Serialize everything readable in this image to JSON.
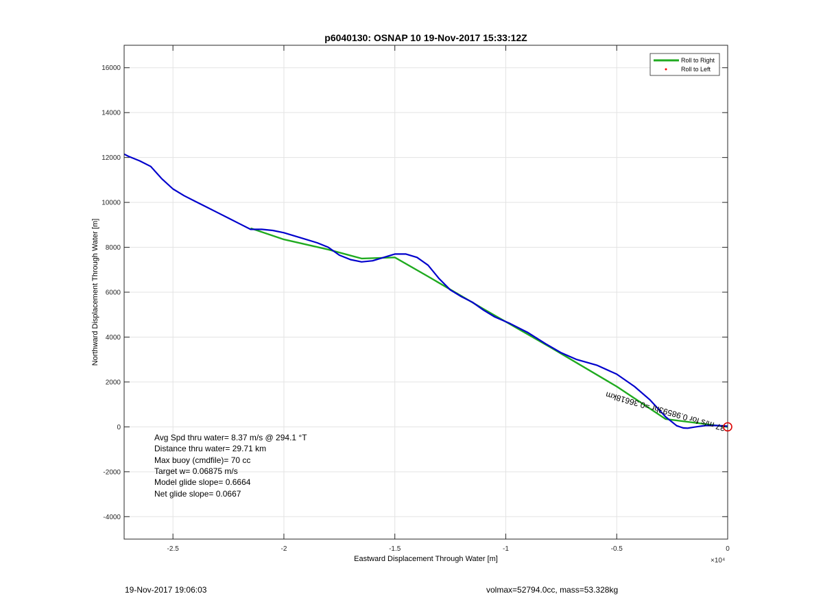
{
  "chart_data": {
    "type": "line",
    "title": "p6040130: OSNAP 10 19-Nov-2017 15:33:12Z",
    "xlabel": "Eastward Displacement Through Water [m]",
    "ylabel": "Northward Displacement Through Water [m]",
    "x_exponent_label": "×10⁴",
    "xlim": [
      -27200,
      0
    ],
    "ylim": [
      -5000,
      17000
    ],
    "grid": true,
    "x_ticks": [
      -25000,
      -20000,
      -15000,
      -10000,
      -5000,
      0
    ],
    "x_tick_labels": [
      "-2.5",
      "-2",
      "-1.5",
      "-1",
      "-0.5",
      "0"
    ],
    "y_ticks": [
      -4000,
      -2000,
      0,
      2000,
      4000,
      6000,
      8000,
      10000,
      12000,
      14000,
      16000
    ],
    "y_tick_labels": [
      "-4000",
      "-2000",
      "0",
      "2000",
      "4000",
      "6000",
      "8000",
      "10000",
      "12000",
      "14000",
      "16000"
    ],
    "legend": {
      "placement": "top-right",
      "entries": [
        {
          "label": "Roll to Right",
          "color": "#1faa1f",
          "marker": "line"
        },
        {
          "label": "Roll to Left",
          "color": "#ff0000",
          "marker": "dot"
        }
      ]
    },
    "series": [
      {
        "name": "Roll to Right",
        "color": "#1faa1f",
        "x": [
          0,
          -2800,
          -5000,
          -8000,
          -11000,
          -13500,
          -15000,
          -16500,
          -18000,
          -20000,
          -21500
        ],
        "y": [
          0,
          350,
          1800,
          3550,
          5250,
          6700,
          7550,
          7500,
          7900,
          8350,
          8850
        ]
      },
      {
        "name": "",
        "color": "#0000cc",
        "x": [
          0,
          -500,
          -1000,
          -1500,
          -1800,
          -2000,
          -2300,
          -2800,
          -3500,
          -4200,
          -5000,
          -5900,
          -6800,
          -7500,
          -8200,
          -9000,
          -9800,
          -10500,
          -11000,
          -11500,
          -12000,
          -12500,
          -13000,
          -13500,
          -14000,
          -14500,
          -15000,
          -15500,
          -16000,
          -16500,
          -17000,
          -17500,
          -18000,
          -18500,
          -19000,
          -19500,
          -20000,
          -20500,
          -21000,
          -21500,
          -22000,
          -22500,
          -23000,
          -23500,
          -24000,
          -24500,
          -25000,
          -25500,
          -26000,
          -26500,
          -27000,
          -27200
        ],
        "y": [
          30,
          60,
          60,
          -10,
          -60,
          -50,
          50,
          450,
          1200,
          1800,
          2350,
          2750,
          3000,
          3300,
          3700,
          4200,
          4600,
          4900,
          5200,
          5550,
          5800,
          6100,
          6600,
          7200,
          7550,
          7700,
          7700,
          7550,
          7400,
          7350,
          7450,
          7650,
          8000,
          8200,
          8350,
          8500,
          8650,
          8750,
          8800,
          8800,
          9050,
          9300,
          9550,
          9800,
          10050,
          10300,
          10600,
          11050,
          11600,
          11850,
          12050,
          12150
        ]
      }
    ],
    "current_projection_label": "",
    "current_projection_label_raw": "37 m/s for 0.98593hr =0.36618km",
    "end_marker": {
      "x": 0,
      "y": 0,
      "color": "#dd0000"
    },
    "annotations": [
      "Avg Spd thru water=  8.37 m/s @ 294.1 °T",
      "Distance thru water= 29.71 km",
      "Max buoy (cmdfile)= 70 cc",
      "Target w= 0.06875 m/s",
      "Model glide slope= 0.6664",
      "Net glide slope= 0.0667"
    ]
  },
  "footer": {
    "left": "19-Nov-2017 19:06:03",
    "right": "volmax=52794.0cc, mass=53.328kg"
  }
}
